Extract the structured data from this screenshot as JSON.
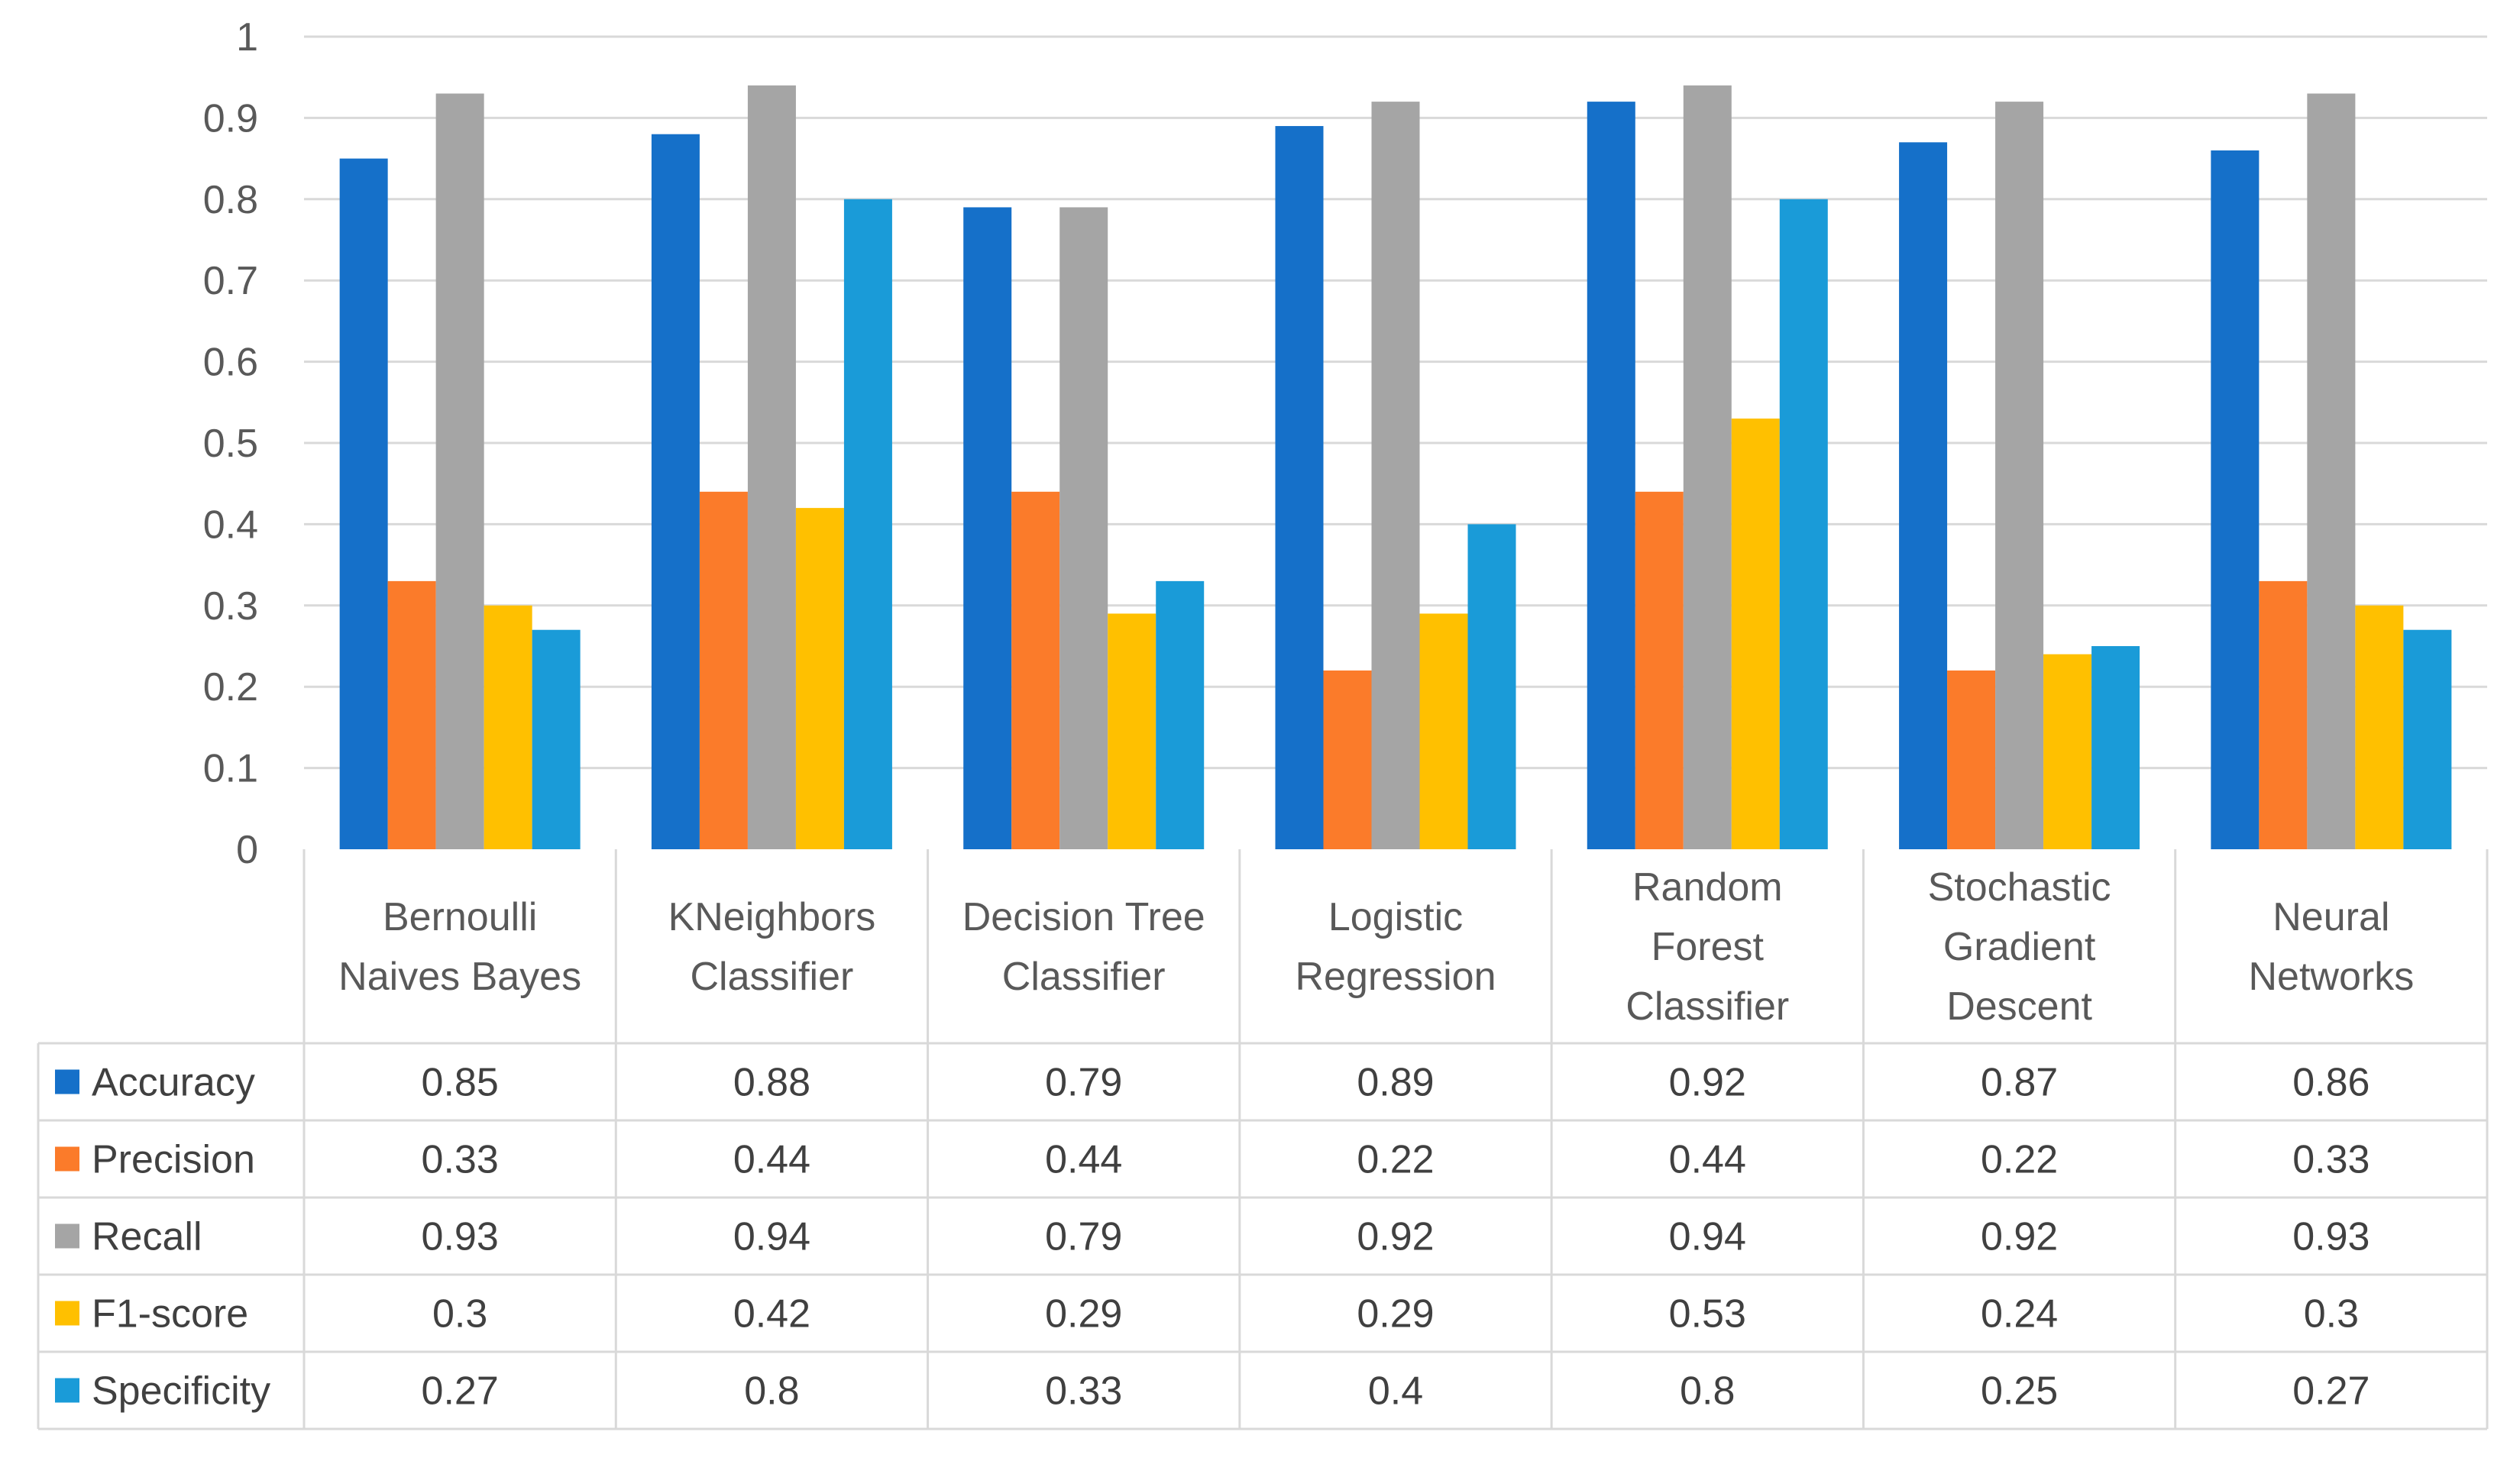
{
  "chart_data": {
    "type": "bar",
    "title": "",
    "xlabel": "",
    "ylabel": "",
    "ylim": [
      0,
      1
    ],
    "yticks": [
      "0",
      "0.1",
      "0.2",
      "0.3",
      "0.4",
      "0.5",
      "0.6",
      "0.7",
      "0.8",
      "0.9",
      "1"
    ],
    "grid": true,
    "legend": "data-table",
    "categories": [
      [
        "Bernoulli",
        "Naives Bayes"
      ],
      [
        "KNeighbors",
        "Classifier"
      ],
      [
        "Decision Tree",
        "Classifier"
      ],
      [
        "Logistic",
        "Regression"
      ],
      [
        "Random",
        "Forest",
        "Classifier"
      ],
      [
        "Stochastic",
        "Gradient",
        "Descent"
      ],
      [
        "Neural",
        "Networks"
      ]
    ],
    "series": [
      {
        "name": "Accuracy",
        "color": "#1570C9",
        "values": [
          0.85,
          0.88,
          0.79,
          0.89,
          0.92,
          0.87,
          0.86
        ],
        "labels": [
          "0.85",
          "0.88",
          "0.79",
          "0.89",
          "0.92",
          "0.87",
          "0.86"
        ]
      },
      {
        "name": "Precision",
        "color": "#FB7B2A",
        "values": [
          0.33,
          0.44,
          0.44,
          0.22,
          0.44,
          0.22,
          0.33
        ],
        "labels": [
          "0.33",
          "0.44",
          "0.44",
          "0.22",
          "0.44",
          "0.22",
          "0.33"
        ]
      },
      {
        "name": "Recall",
        "color": "#A5A5A5",
        "values": [
          0.93,
          0.94,
          0.79,
          0.92,
          0.94,
          0.92,
          0.93
        ],
        "labels": [
          "0.93",
          "0.94",
          "0.79",
          "0.92",
          "0.94",
          "0.92",
          "0.93"
        ]
      },
      {
        "name": "F1-score",
        "color": "#FFC000",
        "values": [
          0.3,
          0.42,
          0.29,
          0.29,
          0.53,
          0.24,
          0.3
        ],
        "labels": [
          "0.3",
          "0.42",
          "0.29",
          "0.29",
          "0.53",
          "0.24",
          "0.3"
        ]
      },
      {
        "name": "Specificity",
        "color": "#1A9BD8",
        "values": [
          0.27,
          0.8,
          0.33,
          0.4,
          0.8,
          0.25,
          0.27
        ],
        "labels": [
          "0.27",
          "0.8",
          "0.33",
          "0.4",
          "0.8",
          "0.25",
          "0.27"
        ]
      }
    ]
  }
}
